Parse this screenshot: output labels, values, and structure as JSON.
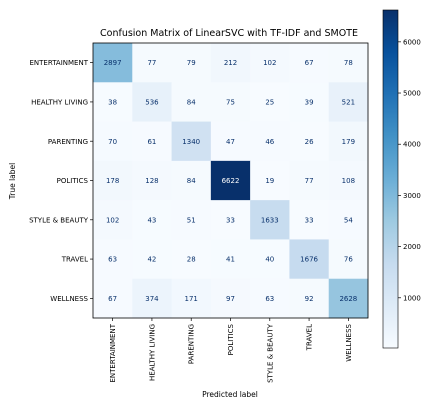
{
  "chart_data": {
    "type": "heatmap",
    "title": "Confusion Matrix of LinearSVC with TF-IDF and SMOTE",
    "xlabel": "Predicted label",
    "ylabel": "True label",
    "labels": [
      "ENTERTAINMENT",
      "HEALTHY LIVING",
      "PARENTING",
      "POLITICS",
      "STYLE & BEAUTY",
      "TRAVEL",
      "WELLNESS"
    ],
    "matrix": [
      [
        2897,
        77,
        79,
        212,
        102,
        67,
        78
      ],
      [
        38,
        536,
        84,
        75,
        25,
        39,
        521
      ],
      [
        70,
        61,
        1340,
        47,
        46,
        26,
        179
      ],
      [
        178,
        128,
        84,
        6622,
        19,
        77,
        108
      ],
      [
        102,
        43,
        51,
        33,
        1633,
        33,
        54
      ],
      [
        63,
        42,
        28,
        41,
        40,
        1676,
        76
      ],
      [
        67,
        374,
        171,
        97,
        63,
        92,
        2628
      ]
    ],
    "colorbar": {
      "min": 19,
      "max": 6622,
      "ticks": [
        1000,
        2000,
        3000,
        4000,
        5000,
        6000
      ],
      "colormap": "Blues"
    }
  }
}
